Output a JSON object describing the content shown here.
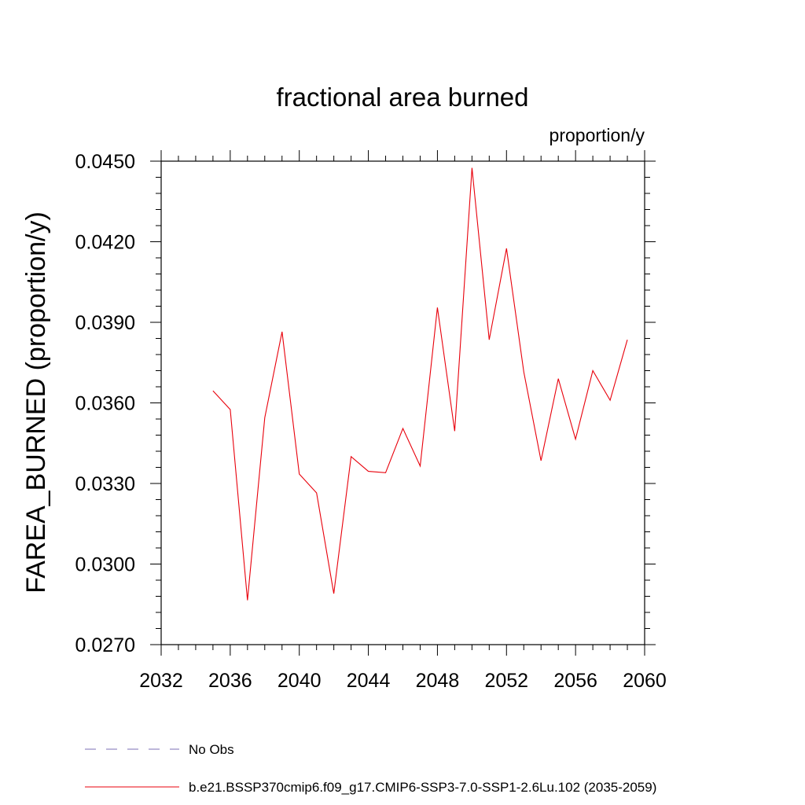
{
  "chart_data": {
    "type": "line",
    "title": "fractional area burned",
    "units_label": "proportion/y",
    "xlabel": "",
    "ylabel": "FAREA_BURNED  (proportion/y)",
    "xlim": [
      2032,
      2060
    ],
    "ylim": [
      0.027,
      0.045
    ],
    "x_ticks": [
      "2032",
      "2036",
      "2040",
      "2044",
      "2048",
      "2052",
      "2056",
      "2060"
    ],
    "y_ticks": [
      "0.0270",
      "0.0300",
      "0.0330",
      "0.0360",
      "0.0390",
      "0.0420",
      "0.0450"
    ],
    "grid": false,
    "legend_position": "bottom",
    "series": [
      {
        "name": "b.e21.BSSP370cmip6.f09_g17.CMIP6-SSP3-7.0-SSP1-2.6Lu.102 (2035-2059)",
        "color": "#e8000b",
        "style": "solid",
        "x": [
          2035,
          2036,
          2037,
          2038,
          2039,
          2040,
          2041,
          2042,
          2043,
          2044,
          2045,
          2046,
          2047,
          2048,
          2049,
          2050,
          2051,
          2052,
          2053,
          2054,
          2055,
          2056,
          2057,
          2058,
          2059
        ],
        "y": [
          0.03645,
          0.03575,
          0.02865,
          0.03545,
          0.03865,
          0.03335,
          0.03265,
          0.0289,
          0.034,
          0.03345,
          0.0334,
          0.03505,
          0.03365,
          0.03955,
          0.03495,
          0.04475,
          0.03835,
          0.04175,
          0.03715,
          0.03385,
          0.0369,
          0.03465,
          0.0372,
          0.0361,
          0.03835
        ]
      }
    ],
    "legend": [
      {
        "label": "No Obs",
        "color": "#7b6fb5",
        "style": "dashed"
      },
      {
        "label": "b.e21.BSSP370cmip6.f09_g17.CMIP6-SSP3-7.0-SSP1-2.6Lu.102 (2035-2059)",
        "color": "#e8000b",
        "style": "solid"
      }
    ]
  }
}
